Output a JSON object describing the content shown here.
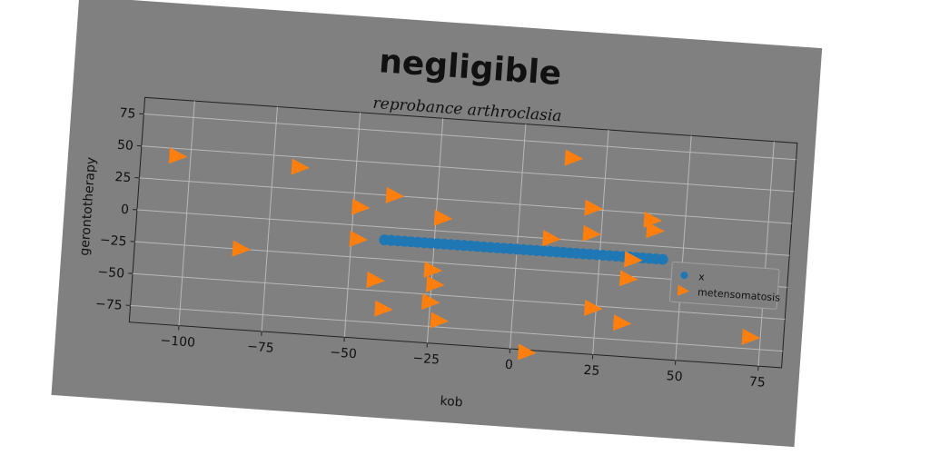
{
  "chart_data": {
    "type": "scatter",
    "title": "negligible",
    "subtitle": "reprobance arthroclasia",
    "xlabel": "kob",
    "ylabel": "gerontotherapy",
    "xlim": [
      -115,
      82
    ],
    "ylim": [
      -88,
      88
    ],
    "xticks": [
      -100,
      -75,
      -50,
      -25,
      0,
      25,
      50,
      75
    ],
    "yticks": [
      -75,
      -50,
      -25,
      0,
      25,
      50,
      75
    ],
    "grid": true,
    "legend_position": "right",
    "background": "#808080",
    "series": [
      {
        "name": "x",
        "marker": "circle",
        "color": "#1f77b4",
        "x": [
          -40,
          -38,
          -36,
          -34,
          -32,
          -30,
          -28,
          -26,
          -24,
          -22,
          -20,
          -18,
          -16,
          -14,
          -12,
          -10,
          -8,
          -6,
          -4,
          -2,
          0,
          2,
          4,
          6,
          8,
          10,
          12,
          14,
          16,
          18,
          20,
          22,
          24,
          26,
          28,
          30,
          32,
          34,
          36,
          38,
          40,
          42,
          44
        ],
        "y": [
          -10,
          -10,
          -10,
          -10,
          -10,
          -10,
          -10,
          -10,
          -10,
          -10,
          -10,
          -10,
          -10,
          -10,
          -10,
          -10,
          -10,
          -10,
          -10,
          -10,
          -10,
          -10,
          -10,
          -10,
          -10,
          -10,
          -10,
          -10,
          -10,
          -10,
          -10,
          -10,
          -10,
          -10,
          -10,
          -10,
          -10,
          -10,
          -10,
          -10,
          -10,
          -10,
          -10
        ]
      },
      {
        "name": "metensomatosis",
        "marker": "triangle-right",
        "color": "#ff7f0e",
        "x": [
          -104,
          -83,
          -67,
          -48,
          -48,
          -38,
          -42,
          -39,
          -23,
          -25,
          -24,
          -25,
          -22,
          10,
          15,
          22,
          22,
          24,
          35,
          34,
          33,
          40,
          41,
          72,
          5
        ],
        "y": [
          44,
          -25,
          42,
          14,
          -11,
          25,
          -42,
          -64,
          10,
          -31,
          -42,
          -56,
          -70,
          0,
          64,
          26,
          6,
          -52,
          -12,
          -27,
          -62,
          20,
          12,
          -66,
          -90
        ]
      }
    ]
  }
}
